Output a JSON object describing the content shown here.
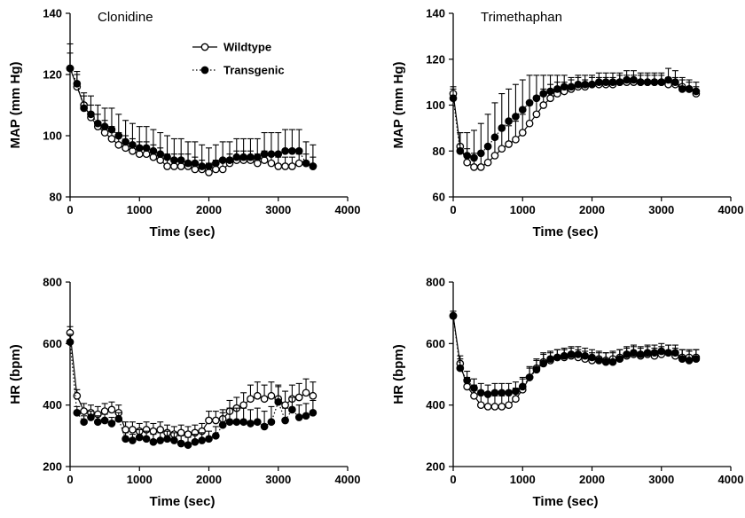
{
  "chart_data": [
    {
      "type": "line",
      "title": "Clonidine",
      "xlabel": "Time (sec)",
      "ylabel": "MAP (mm Hg)",
      "xlim": [
        0,
        4000
      ],
      "ylim": [
        80,
        140
      ],
      "x_ticks": [
        "0",
        "1000",
        "2000",
        "3000",
        "4000"
      ],
      "y_ticks": [
        "80",
        "100",
        "120",
        "140"
      ],
      "legend": {
        "placement": "top-center",
        "entries": [
          "Wildtype",
          "Transgenic"
        ]
      },
      "x": [
        0,
        100,
        200,
        300,
        400,
        500,
        600,
        700,
        800,
        900,
        1000,
        1100,
        1200,
        1300,
        1400,
        1500,
        1600,
        1700,
        1800,
        1900,
        2000,
        2100,
        2200,
        2300,
        2400,
        2500,
        2600,
        2700,
        2800,
        2900,
        3000,
        3100,
        3200,
        3300,
        3400,
        3500
      ],
      "series": [
        {
          "name": "Wildtype",
          "marker": "open-circle",
          "line": "solid",
          "values": [
            122,
            116,
            110,
            106,
            103,
            101,
            99,
            97,
            96,
            95,
            94,
            94,
            93,
            92,
            90,
            90,
            90,
            90,
            89,
            89,
            88,
            89,
            89,
            91,
            92,
            92,
            92,
            91,
            92,
            91,
            90,
            90,
            90,
            91,
            91,
            90
          ],
          "errors": [
            5,
            4,
            4,
            4,
            4,
            4,
            4,
            4,
            4,
            4,
            4,
            4,
            4,
            4,
            4,
            4,
            4,
            4,
            4,
            3,
            3,
            3,
            3,
            3,
            3,
            3,
            3,
            3,
            3,
            3,
            3,
            3,
            3,
            3,
            3,
            3
          ]
        },
        {
          "name": "Transgenic",
          "marker": "filled-circle",
          "line": "dotted",
          "values": [
            122,
            117,
            109,
            107,
            104,
            103,
            102,
            100,
            98,
            97,
            96,
            96,
            95,
            94,
            93,
            92,
            92,
            91,
            91,
            90,
            90,
            91,
            92,
            92,
            93,
            93,
            93,
            93,
            94,
            94,
            94,
            95,
            95,
            95,
            91,
            90
          ],
          "errors": [
            8,
            4,
            4,
            6,
            6,
            6,
            7,
            7,
            7,
            7,
            7,
            7,
            7,
            7,
            7,
            7,
            7,
            7,
            7,
            7,
            6,
            6,
            6,
            6,
            6,
            6,
            6,
            6,
            7,
            7,
            7,
            7,
            7,
            7,
            7,
            7
          ]
        }
      ]
    },
    {
      "type": "line",
      "title": "Trimethaphan",
      "xlabel": "Time (sec)",
      "ylabel": "MAP (mm Hg)",
      "xlim": [
        0,
        4000
      ],
      "ylim": [
        60,
        140
      ],
      "x_ticks": [
        "0",
        "1000",
        "2000",
        "3000",
        "4000"
      ],
      "y_ticks": [
        "60",
        "80",
        "100",
        "120",
        "140"
      ],
      "x": [
        0,
        100,
        200,
        300,
        400,
        500,
        600,
        700,
        800,
        900,
        1000,
        1100,
        1200,
        1300,
        1400,
        1500,
        1600,
        1700,
        1800,
        1900,
        2000,
        2100,
        2200,
        2300,
        2400,
        2500,
        2600,
        2700,
        2800,
        2900,
        3000,
        3100,
        3200,
        3300,
        3400,
        3500
      ],
      "series": [
        {
          "name": "Wildtype",
          "marker": "open-circle",
          "line": "solid",
          "values": [
            105,
            82,
            75,
            73,
            73,
            75,
            78,
            81,
            83,
            85,
            88,
            92,
            96,
            100,
            103,
            105,
            106,
            107,
            108,
            108,
            109,
            109,
            109,
            109,
            110,
            110,
            110,
            110,
            110,
            110,
            110,
            109,
            109,
            108,
            107,
            105
          ],
          "errors": [
            3,
            6,
            6,
            6,
            6,
            7,
            7,
            8,
            8,
            8,
            8,
            8,
            8,
            7,
            6,
            5,
            4,
            4,
            4,
            3,
            3,
            3,
            3,
            3,
            3,
            3,
            3,
            3,
            3,
            3,
            3,
            3,
            3,
            3,
            3,
            3
          ]
        },
        {
          "name": "Transgenic",
          "marker": "filled-circle",
          "line": "dotted",
          "values": [
            103,
            80,
            78,
            77,
            79,
            82,
            86,
            90,
            93,
            95,
            98,
            101,
            103,
            105,
            106,
            107,
            108,
            108,
            109,
            109,
            109,
            110,
            110,
            110,
            110,
            111,
            111,
            110,
            110,
            110,
            110,
            111,
            110,
            107,
            107,
            106
          ],
          "errors": [
            4,
            8,
            10,
            12,
            13,
            14,
            15,
            15,
            14,
            14,
            13,
            12,
            10,
            8,
            7,
            6,
            5,
            4,
            4,
            4,
            4,
            4,
            4,
            4,
            4,
            4,
            4,
            4,
            4,
            4,
            4,
            5,
            5,
            5,
            4,
            4
          ]
        }
      ]
    },
    {
      "type": "line",
      "title": "",
      "xlabel": "Time (sec)",
      "ylabel": "HR (bpm)",
      "xlim": [
        0,
        4000
      ],
      "ylim": [
        200,
        800
      ],
      "x_ticks": [
        "0",
        "1000",
        "2000",
        "3000",
        "4000"
      ],
      "y_ticks": [
        "200",
        "400",
        "600",
        "800"
      ],
      "x": [
        0,
        100,
        200,
        300,
        400,
        500,
        600,
        700,
        800,
        900,
        1000,
        1100,
        1200,
        1300,
        1400,
        1500,
        1600,
        1700,
        1800,
        1900,
        2000,
        2100,
        2200,
        2300,
        2400,
        2500,
        2600,
        2700,
        2800,
        2900,
        3000,
        3100,
        3200,
        3300,
        3400,
        3500
      ],
      "series": [
        {
          "name": "Wildtype",
          "marker": "open-circle",
          "line": "solid",
          "values": [
            635,
            430,
            380,
            375,
            370,
            380,
            385,
            375,
            320,
            320,
            315,
            320,
            315,
            320,
            310,
            305,
            310,
            305,
            310,
            315,
            350,
            350,
            355,
            380,
            390,
            400,
            420,
            430,
            420,
            430,
            420,
            400,
            420,
            425,
            440,
            430
          ],
          "errors": [
            20,
            20,
            25,
            25,
            25,
            25,
            25,
            25,
            25,
            25,
            25,
            25,
            25,
            25,
            25,
            25,
            25,
            25,
            25,
            25,
            30,
            30,
            30,
            35,
            35,
            40,
            45,
            45,
            45,
            45,
            45,
            45,
            45,
            45,
            45,
            45
          ]
        },
        {
          "name": "Transgenic",
          "marker": "filled-circle",
          "line": "dotted",
          "values": [
            605,
            375,
            345,
            360,
            345,
            350,
            340,
            355,
            290,
            285,
            295,
            290,
            280,
            285,
            290,
            285,
            275,
            270,
            280,
            285,
            290,
            300,
            335,
            345,
            345,
            345,
            340,
            345,
            330,
            345,
            410,
            350,
            385,
            360,
            365,
            375
          ],
          "errors": [
            25,
            20,
            20,
            20,
            20,
            20,
            20,
            20,
            20,
            20,
            25,
            25,
            25,
            25,
            25,
            25,
            25,
            25,
            25,
            25,
            25,
            30,
            40,
            45,
            45,
            45,
            45,
            45,
            50,
            50,
            50,
            40,
            40,
            40,
            40,
            40
          ]
        }
      ]
    },
    {
      "type": "line",
      "title": "",
      "xlabel": "Time (sec)",
      "ylabel": "HR (bpm)",
      "xlim": [
        0,
        4000
      ],
      "ylim": [
        200,
        800
      ],
      "x_ticks": [
        "0",
        "1000",
        "2000",
        "3000",
        "4000"
      ],
      "y_ticks": [
        "200",
        "400",
        "600",
        "800"
      ],
      "x": [
        0,
        100,
        200,
        300,
        400,
        500,
        600,
        700,
        800,
        900,
        1000,
        1100,
        1200,
        1300,
        1400,
        1500,
        1600,
        1700,
        1800,
        1900,
        2000,
        2100,
        2200,
        2300,
        2400,
        2500,
        2600,
        2700,
        2800,
        2900,
        3000,
        3100,
        3200,
        3300,
        3400,
        3500
      ],
      "series": [
        {
          "name": "Wildtype",
          "marker": "open-circle",
          "line": "solid",
          "values": [
            690,
            535,
            460,
            430,
            400,
            395,
            395,
            395,
            400,
            420,
            450,
            490,
            520,
            540,
            545,
            555,
            555,
            560,
            555,
            550,
            545,
            550,
            545,
            550,
            555,
            560,
            565,
            560,
            565,
            560,
            565,
            570,
            560,
            555,
            555,
            555
          ],
          "errors": [
            15,
            25,
            30,
            35,
            35,
            35,
            35,
            35,
            35,
            35,
            35,
            35,
            30,
            30,
            25,
            25,
            25,
            25,
            25,
            25,
            25,
            25,
            25,
            25,
            25,
            25,
            25,
            25,
            25,
            25,
            25,
            25,
            25,
            25,
            25,
            25
          ]
        },
        {
          "name": "Transgenic",
          "marker": "filled-circle",
          "line": "dotted",
          "values": [
            690,
            520,
            480,
            455,
            440,
            435,
            440,
            440,
            440,
            445,
            460,
            490,
            515,
            535,
            550,
            555,
            560,
            565,
            565,
            560,
            555,
            545,
            540,
            540,
            550,
            565,
            570,
            565,
            570,
            570,
            575,
            570,
            570,
            550,
            545,
            550
          ],
          "errors": [
            15,
            30,
            30,
            30,
            30,
            30,
            30,
            30,
            30,
            30,
            30,
            30,
            30,
            30,
            25,
            25,
            25,
            25,
            25,
            25,
            25,
            25,
            30,
            30,
            30,
            25,
            25,
            25,
            25,
            25,
            25,
            25,
            25,
            30,
            30,
            30
          ]
        }
      ]
    }
  ]
}
